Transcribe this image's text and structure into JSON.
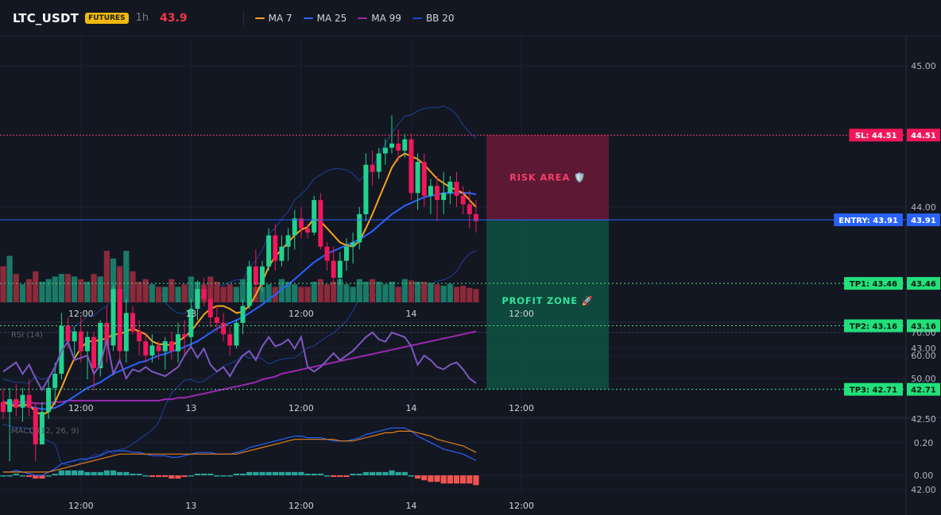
{
  "header": {
    "symbol": "LTC_USDT",
    "badge": "FUTURES",
    "interval": "1h",
    "last_price": "43.9",
    "legend": [
      {
        "label": "MA 7",
        "color": "#f7a21b"
      },
      {
        "label": "MA 25",
        "color": "#2962ff"
      },
      {
        "label": "MA 99",
        "color": "#9c27b0"
      },
      {
        "label": "BB 20",
        "color": "#1848cc"
      }
    ]
  },
  "colors": {
    "up": "#22d38f",
    "down": "#f0175a",
    "vol_up": "#1a7a68",
    "vol_down": "#8b2a3b",
    "risk_line": "#f23e6c",
    "entry_line": "#2962ff",
    "tp_line": "#4ade80",
    "rsi": "#7e57c2",
    "macd": "#2962ff",
    "signal": "#e3821b",
    "hist_up": "#26a69a",
    "hist_down": "#ef5350"
  },
  "overlays": {
    "risk_label": "RISK AREA 🛡️",
    "profit_label": "PROFIT ZONE 🚀"
  },
  "levels": [
    {
      "tag": "SL: 44.51",
      "price": 44.51,
      "axis": "44.51",
      "kind": "sl"
    },
    {
      "tag": "ENTRY: 43.91",
      "price": 43.91,
      "axis": "43.91",
      "kind": "entry"
    },
    {
      "tag": "TP1: 43.46",
      "price": 43.46,
      "axis": "43.46",
      "kind": "tp"
    },
    {
      "tag": "TP2: 43.16",
      "price": 43.16,
      "axis": "43.16",
      "kind": "tp"
    },
    {
      "tag": "TP3: 42.71",
      "price": 42.71,
      "axis": "42.71",
      "kind": "tp"
    }
  ],
  "panes": {
    "rsi_label": "RSI (14)",
    "macd_label": "MACD (12, 26, 9)"
  },
  "chart_data": {
    "type": "candlestick",
    "price_axis_ticks": [
      "45.00",
      "44.00",
      "43.00",
      "42.50",
      "42.00"
    ],
    "price_axis_values": [
      45.0,
      44.0,
      43.0,
      42.5,
      42.0
    ],
    "x_tick_labels": [
      "12:00",
      "13",
      "12:00",
      "14",
      "12:00"
    ],
    "x_tick_bar_index": [
      12,
      29,
      46,
      63,
      80
    ],
    "candles": [
      {
        "o": 42.62,
        "h": 42.72,
        "l": 42.5,
        "c": 42.55
      },
      {
        "o": 42.55,
        "h": 42.72,
        "l": 42.2,
        "c": 42.64
      },
      {
        "o": 42.64,
        "h": 42.75,
        "l": 42.52,
        "c": 42.58
      },
      {
        "o": 42.58,
        "h": 42.72,
        "l": 42.48,
        "c": 42.67
      },
      {
        "o": 42.67,
        "h": 42.78,
        "l": 42.52,
        "c": 42.58
      },
      {
        "o": 42.58,
        "h": 42.62,
        "l": 42.2,
        "c": 42.32
      },
      {
        "o": 42.32,
        "h": 42.62,
        "l": 42.32,
        "c": 42.55
      },
      {
        "o": 42.55,
        "h": 42.78,
        "l": 42.5,
        "c": 42.72
      },
      {
        "o": 42.72,
        "h": 42.9,
        "l": 42.6,
        "c": 42.82
      },
      {
        "o": 42.82,
        "h": 43.25,
        "l": 42.78,
        "c": 43.16
      },
      {
        "o": 43.16,
        "h": 43.22,
        "l": 43.0,
        "c": 43.05
      },
      {
        "o": 43.05,
        "h": 43.15,
        "l": 42.95,
        "c": 43.12
      },
      {
        "o": 43.12,
        "h": 43.22,
        "l": 42.9,
        "c": 42.98
      },
      {
        "o": 42.98,
        "h": 43.12,
        "l": 42.78,
        "c": 43.08
      },
      {
        "o": 43.08,
        "h": 43.12,
        "l": 42.7,
        "c": 42.86
      },
      {
        "o": 42.86,
        "h": 43.2,
        "l": 42.8,
        "c": 43.18
      },
      {
        "o": 43.18,
        "h": 43.3,
        "l": 42.9,
        "c": 43.02
      },
      {
        "o": 43.02,
        "h": 43.45,
        "l": 42.98,
        "c": 43.42
      },
      {
        "o": 43.42,
        "h": 43.55,
        "l": 42.9,
        "c": 42.98
      },
      {
        "o": 42.98,
        "h": 43.35,
        "l": 42.9,
        "c": 43.25
      },
      {
        "o": 43.25,
        "h": 43.3,
        "l": 43.1,
        "c": 43.12
      },
      {
        "o": 43.12,
        "h": 43.2,
        "l": 42.95,
        "c": 43.05
      },
      {
        "o": 43.05,
        "h": 43.1,
        "l": 42.9,
        "c": 42.95
      },
      {
        "o": 42.95,
        "h": 43.1,
        "l": 42.9,
        "c": 43.02
      },
      {
        "o": 43.02,
        "h": 43.05,
        "l": 42.92,
        "c": 42.98
      },
      {
        "o": 42.98,
        "h": 43.08,
        "l": 42.85,
        "c": 43.05
      },
      {
        "o": 43.05,
        "h": 43.12,
        "l": 42.92,
        "c": 42.98
      },
      {
        "o": 42.98,
        "h": 43.18,
        "l": 42.9,
        "c": 43.1
      },
      {
        "o": 43.1,
        "h": 43.2,
        "l": 42.95,
        "c": 43.08
      },
      {
        "o": 43.08,
        "h": 43.35,
        "l": 43.0,
        "c": 43.28
      },
      {
        "o": 43.28,
        "h": 43.48,
        "l": 43.2,
        "c": 43.42
      },
      {
        "o": 43.42,
        "h": 43.5,
        "l": 43.3,
        "c": 43.35
      },
      {
        "o": 43.35,
        "h": 43.42,
        "l": 43.15,
        "c": 43.22
      },
      {
        "o": 43.22,
        "h": 43.3,
        "l": 43.12,
        "c": 43.18
      },
      {
        "o": 43.18,
        "h": 43.25,
        "l": 43.05,
        "c": 43.1
      },
      {
        "o": 43.1,
        "h": 43.15,
        "l": 42.95,
        "c": 43.02
      },
      {
        "o": 43.02,
        "h": 43.2,
        "l": 43.0,
        "c": 43.18
      },
      {
        "o": 43.18,
        "h": 43.35,
        "l": 43.1,
        "c": 43.3
      },
      {
        "o": 43.3,
        "h": 43.62,
        "l": 43.28,
        "c": 43.58
      },
      {
        "o": 43.58,
        "h": 43.7,
        "l": 43.4,
        "c": 43.45
      },
      {
        "o": 43.45,
        "h": 43.62,
        "l": 43.4,
        "c": 43.58
      },
      {
        "o": 43.58,
        "h": 43.85,
        "l": 43.55,
        "c": 43.8
      },
      {
        "o": 43.8,
        "h": 43.88,
        "l": 43.55,
        "c": 43.62
      },
      {
        "o": 43.62,
        "h": 43.8,
        "l": 43.58,
        "c": 43.72
      },
      {
        "o": 43.72,
        "h": 43.85,
        "l": 43.62,
        "c": 43.8
      },
      {
        "o": 43.8,
        "h": 43.98,
        "l": 43.7,
        "c": 43.92
      },
      {
        "o": 43.92,
        "h": 44.0,
        "l": 43.78,
        "c": 43.85
      },
      {
        "o": 43.85,
        "h": 43.88,
        "l": 43.78,
        "c": 43.82
      },
      {
        "o": 43.82,
        "h": 44.08,
        "l": 43.8,
        "c": 44.05
      },
      {
        "o": 44.05,
        "h": 44.1,
        "l": 43.7,
        "c": 43.72
      },
      {
        "o": 43.72,
        "h": 43.75,
        "l": 43.55,
        "c": 43.62
      },
      {
        "o": 43.62,
        "h": 43.72,
        "l": 43.45,
        "c": 43.5
      },
      {
        "o": 43.5,
        "h": 43.68,
        "l": 43.45,
        "c": 43.62
      },
      {
        "o": 43.62,
        "h": 43.78,
        "l": 43.55,
        "c": 43.72
      },
      {
        "o": 43.72,
        "h": 43.82,
        "l": 43.6,
        "c": 43.75
      },
      {
        "o": 43.75,
        "h": 44.0,
        "l": 43.7,
        "c": 43.95
      },
      {
        "o": 43.95,
        "h": 44.38,
        "l": 43.9,
        "c": 44.3
      },
      {
        "o": 44.3,
        "h": 44.4,
        "l": 44.15,
        "c": 44.25
      },
      {
        "o": 44.25,
        "h": 44.42,
        "l": 44.2,
        "c": 44.38
      },
      {
        "o": 44.38,
        "h": 44.48,
        "l": 44.3,
        "c": 44.42
      },
      {
        "o": 44.42,
        "h": 44.65,
        "l": 44.38,
        "c": 44.45
      },
      {
        "o": 44.45,
        "h": 44.55,
        "l": 44.32,
        "c": 44.4
      },
      {
        "o": 44.4,
        "h": 44.52,
        "l": 44.35,
        "c": 44.48
      },
      {
        "o": 44.48,
        "h": 44.52,
        "l": 44.05,
        "c": 44.1
      },
      {
        "o": 44.1,
        "h": 44.38,
        "l": 43.98,
        "c": 44.32
      },
      {
        "o": 44.32,
        "h": 44.38,
        "l": 44.0,
        "c": 44.08
      },
      {
        "o": 44.08,
        "h": 44.2,
        "l": 43.95,
        "c": 44.15
      },
      {
        "o": 44.15,
        "h": 44.22,
        "l": 43.9,
        "c": 44.05
      },
      {
        "o": 44.05,
        "h": 44.25,
        "l": 43.95,
        "c": 44.1
      },
      {
        "o": 44.1,
        "h": 44.22,
        "l": 44.02,
        "c": 44.18
      },
      {
        "o": 44.18,
        "h": 44.25,
        "l": 44.0,
        "c": 44.08
      },
      {
        "o": 44.08,
        "h": 44.15,
        "l": 43.95,
        "c": 44.02
      },
      {
        "o": 44.02,
        "h": 44.12,
        "l": 43.85,
        "c": 43.95
      },
      {
        "o": 43.95,
        "h": 44.05,
        "l": 43.82,
        "c": 43.9
      }
    ],
    "ma7": [
      42.62,
      42.6,
      42.59,
      42.6,
      42.6,
      42.55,
      42.53,
      42.55,
      42.62,
      42.72,
      42.83,
      42.93,
      43.0,
      43.05,
      43.05,
      43.06,
      43.07,
      43.1,
      43.1,
      43.12,
      43.14,
      43.12,
      43.1,
      43.05,
      43.03,
      43.03,
      43.02,
      43.05,
      43.08,
      43.12,
      43.18,
      43.24,
      43.28,
      43.3,
      43.3,
      43.28,
      43.25,
      43.26,
      43.3,
      43.38,
      43.47,
      43.58,
      43.65,
      43.7,
      43.75,
      43.8,
      43.84,
      43.86,
      43.92,
      43.9,
      43.85,
      43.8,
      43.75,
      43.73,
      43.72,
      43.76,
      43.85,
      43.95,
      44.06,
      44.17,
      44.28,
      44.35,
      44.38,
      44.36,
      44.34,
      44.3,
      44.25,
      44.2,
      44.17,
      44.14,
      44.12,
      44.1,
      44.05,
      44.0
    ],
    "ma25": [
      42.62,
      42.61,
      42.6,
      42.6,
      42.59,
      42.58,
      42.57,
      42.57,
      42.58,
      42.6,
      42.63,
      42.66,
      42.69,
      42.72,
      42.74,
      42.76,
      42.79,
      42.82,
      42.84,
      42.86,
      42.88,
      42.9,
      42.91,
      42.93,
      42.95,
      42.96,
      42.98,
      42.99,
      43.01,
      43.03,
      43.05,
      43.08,
      43.11,
      43.14,
      43.16,
      43.18,
      43.2,
      43.22,
      43.25,
      43.28,
      43.31,
      43.35,
      43.38,
      43.42,
      43.45,
      43.49,
      43.53,
      43.57,
      43.61,
      43.64,
      43.67,
      43.69,
      43.71,
      43.73,
      43.75,
      43.77,
      43.8,
      43.83,
      43.87,
      43.91,
      43.95,
      43.98,
      44.01,
      44.03,
      44.05,
      44.07,
      44.08,
      44.09,
      44.1,
      44.1,
      44.1,
      44.1,
      44.1,
      44.09
    ],
    "ma99": [
      42.62,
      42.62,
      42.62,
      42.62,
      42.62,
      42.61,
      42.61,
      42.61,
      42.62,
      42.62,
      42.63,
      42.63,
      42.63,
      42.63,
      42.63,
      42.63,
      42.63,
      42.63,
      42.63,
      42.63,
      42.63,
      42.63,
      42.63,
      42.63,
      42.63,
      42.64,
      42.64,
      42.65,
      42.65,
      42.66,
      42.67,
      42.68,
      42.69,
      42.7,
      42.71,
      42.72,
      42.73,
      42.74,
      42.75,
      42.76,
      42.78,
      42.79,
      42.8,
      42.82,
      42.83,
      42.84,
      42.85,
      42.86,
      42.87,
      42.88,
      42.89,
      42.9,
      42.91,
      42.92,
      42.93,
      42.94,
      42.95,
      42.96,
      42.97,
      42.98,
      42.99,
      43.0,
      43.01,
      43.02,
      43.03,
      43.04,
      43.05,
      43.06,
      43.07,
      43.08,
      43.09,
      43.1,
      43.11,
      43.12
    ],
    "volume_ratio": [
      0.7,
      0.9,
      0.55,
      0.35,
      0.45,
      0.6,
      0.4,
      0.45,
      0.5,
      0.55,
      0.55,
      0.5,
      0.45,
      0.4,
      0.55,
      0.5,
      1.0,
      0.85,
      0.7,
      1.0,
      0.6,
      0.4,
      0.45,
      0.35,
      0.3,
      0.3,
      0.45,
      0.3,
      0.35,
      0.5,
      0.4,
      0.35,
      0.5,
      0.4,
      0.3,
      0.35,
      0.3,
      0.45,
      0.35,
      0.3,
      0.3,
      0.35,
      0.3,
      0.45,
      0.4,
      0.35,
      0.3,
      0.3,
      0.4,
      0.45,
      0.35,
      0.4,
      0.45,
      0.35,
      0.3,
      0.45,
      0.4,
      0.45,
      0.4,
      0.35,
      0.4,
      0.3,
      0.45,
      0.42,
      0.4,
      0.4,
      0.38,
      0.35,
      0.32,
      0.36,
      0.3,
      0.32,
      0.28,
      0.26
    ],
    "rsi": {
      "axis_ticks": [
        "70.00",
        "60.00",
        "50.00"
      ],
      "axis_values": [
        70,
        60,
        50
      ],
      "values": [
        53,
        55,
        57,
        52,
        56,
        50,
        45,
        50,
        55,
        62,
        66,
        58,
        59,
        60,
        52,
        56,
        67,
        52,
        58,
        50,
        54,
        53,
        55,
        53,
        52,
        51,
        53,
        55,
        60,
        64,
        59,
        63,
        56,
        53,
        55,
        51,
        56,
        60,
        62,
        58,
        64,
        68,
        64,
        65,
        67,
        63,
        68,
        55,
        53,
        55,
        58,
        61,
        58,
        60,
        62,
        65,
        68,
        70,
        67,
        66,
        70,
        69,
        68,
        64,
        56,
        60,
        58,
        55,
        54,
        56,
        57,
        54,
        50,
        48
      ]
    },
    "macd": {
      "axis_ticks": [
        "0.20",
        "0.00"
      ],
      "axis_values": [
        0.2,
        0.0
      ],
      "macd": [
        0.02,
        0.02,
        0.03,
        0.02,
        0.01,
        0.0,
        0.0,
        0.02,
        0.04,
        0.07,
        0.08,
        0.09,
        0.1,
        0.1,
        0.11,
        0.12,
        0.14,
        0.15,
        0.15,
        0.15,
        0.14,
        0.14,
        0.13,
        0.12,
        0.12,
        0.12,
        0.11,
        0.11,
        0.12,
        0.13,
        0.14,
        0.14,
        0.14,
        0.13,
        0.13,
        0.13,
        0.14,
        0.15,
        0.17,
        0.18,
        0.19,
        0.2,
        0.21,
        0.22,
        0.23,
        0.24,
        0.24,
        0.23,
        0.23,
        0.23,
        0.22,
        0.21,
        0.21,
        0.21,
        0.22,
        0.23,
        0.25,
        0.26,
        0.27,
        0.28,
        0.29,
        0.29,
        0.29,
        0.27,
        0.24,
        0.22,
        0.2,
        0.18,
        0.16,
        0.15,
        0.14,
        0.13,
        0.11,
        0.09
      ],
      "signal": [
        0.02,
        0.02,
        0.02,
        0.02,
        0.02,
        0.02,
        0.02,
        0.02,
        0.03,
        0.04,
        0.05,
        0.06,
        0.07,
        0.08,
        0.09,
        0.1,
        0.11,
        0.12,
        0.13,
        0.13,
        0.13,
        0.13,
        0.13,
        0.13,
        0.13,
        0.13,
        0.13,
        0.13,
        0.13,
        0.13,
        0.13,
        0.13,
        0.13,
        0.13,
        0.13,
        0.13,
        0.13,
        0.14,
        0.15,
        0.16,
        0.17,
        0.18,
        0.19,
        0.2,
        0.21,
        0.22,
        0.22,
        0.22,
        0.22,
        0.22,
        0.22,
        0.22,
        0.21,
        0.21,
        0.21,
        0.22,
        0.23,
        0.24,
        0.25,
        0.26,
        0.26,
        0.27,
        0.27,
        0.27,
        0.26,
        0.25,
        0.24,
        0.22,
        0.21,
        0.2,
        0.19,
        0.18,
        0.16,
        0.14
      ],
      "hist": [
        0.0,
        0.0,
        0.01,
        0.0,
        -0.01,
        -0.02,
        -0.02,
        0.0,
        0.01,
        0.03,
        0.03,
        0.03,
        0.03,
        0.02,
        0.02,
        0.02,
        0.03,
        0.03,
        0.02,
        0.02,
        0.01,
        0.01,
        0.0,
        -0.01,
        -0.01,
        -0.01,
        -0.02,
        -0.02,
        -0.01,
        0.0,
        0.01,
        0.01,
        0.01,
        0.0,
        0.0,
        0.0,
        0.01,
        0.01,
        0.02,
        0.02,
        0.02,
        0.02,
        0.02,
        0.02,
        0.02,
        0.02,
        0.02,
        0.01,
        0.01,
        0.01,
        0.0,
        -0.01,
        -0.01,
        -0.01,
        0.01,
        0.01,
        0.02,
        0.02,
        0.02,
        0.02,
        0.03,
        0.02,
        0.02,
        0.0,
        -0.02,
        -0.03,
        -0.04,
        -0.04,
        -0.05,
        -0.05,
        -0.05,
        -0.05,
        -0.05,
        -0.06
      ]
    }
  }
}
